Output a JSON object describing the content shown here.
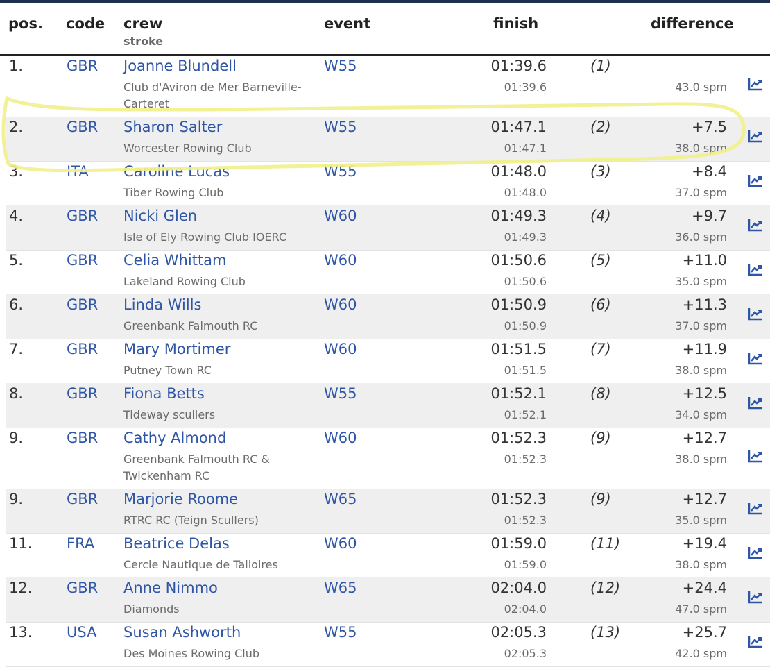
{
  "headers": {
    "pos": "pos.",
    "code": "code",
    "crew": "crew",
    "crew_sub": "stroke",
    "event": "event",
    "finish": "finish",
    "difference": "difference"
  },
  "colors": {
    "link": "#2f56a6",
    "topbar": "#1f2f52",
    "highlight": "#f2f08a"
  },
  "rows": [
    {
      "pos": "1.",
      "code": "GBR",
      "crew": "Joanne Blundell",
      "club": "Club d'Aviron de Mer Barneville-Carteret",
      "event": "W55",
      "finish": "01:39.6",
      "rank": "(1)",
      "diff": "",
      "split": "01:39.6",
      "spm": "43.0 spm",
      "icon": "chart-line-icon"
    },
    {
      "pos": "2.",
      "code": "GBR",
      "crew": "Sharon Salter",
      "club": "Worcester Rowing Club",
      "event": "W55",
      "finish": "01:47.1",
      "rank": "(2)",
      "diff": "+7.5",
      "split": "01:47.1",
      "spm": "38.0 spm",
      "icon": "chart-line-icon"
    },
    {
      "pos": "3.",
      "code": "ITA",
      "crew": "Caroline Lucas",
      "club": "Tiber Rowing Club",
      "event": "W55",
      "finish": "01:48.0",
      "rank": "(3)",
      "diff": "+8.4",
      "split": "01:48.0",
      "spm": "37.0 spm",
      "icon": "chart-line-icon"
    },
    {
      "pos": "4.",
      "code": "GBR",
      "crew": "Nicki Glen",
      "club": "Isle of Ely Rowing Club IOERC",
      "event": "W60",
      "finish": "01:49.3",
      "rank": "(4)",
      "diff": "+9.7",
      "split": "01:49.3",
      "spm": "36.0 spm",
      "icon": "chart-line-icon"
    },
    {
      "pos": "5.",
      "code": "GBR",
      "crew": "Celia Whittam",
      "club": "Lakeland Rowing Club",
      "event": "W60",
      "finish": "01:50.6",
      "rank": "(5)",
      "diff": "+11.0",
      "split": "01:50.6",
      "spm": "35.0 spm",
      "icon": "chart-line-icon"
    },
    {
      "pos": "6.",
      "code": "GBR",
      "crew": "Linda Wills",
      "club": "Greenbank Falmouth RC",
      "event": "W60",
      "finish": "01:50.9",
      "rank": "(6)",
      "diff": "+11.3",
      "split": "01:50.9",
      "spm": "37.0 spm",
      "icon": "chart-line-icon"
    },
    {
      "pos": "7.",
      "code": "GBR",
      "crew": "Mary Mortimer",
      "club": "Putney Town RC",
      "event": "W60",
      "finish": "01:51.5",
      "rank": "(7)",
      "diff": "+11.9",
      "split": "01:51.5",
      "spm": "38.0 spm",
      "icon": "chart-line-icon"
    },
    {
      "pos": "8.",
      "code": "GBR",
      "crew": "Fiona Betts",
      "club": "Tideway scullers",
      "event": "W55",
      "finish": "01:52.1",
      "rank": "(8)",
      "diff": "+12.5",
      "split": "01:52.1",
      "spm": "34.0 spm",
      "icon": "chart-line-icon"
    },
    {
      "pos": "9.",
      "code": "GBR",
      "crew": "Cathy Almond",
      "club": "Greenbank Falmouth RC & Twickenham RC",
      "event": "W60",
      "finish": "01:52.3",
      "rank": "(9)",
      "diff": "+12.7",
      "split": "01:52.3",
      "spm": "38.0 spm",
      "icon": "chart-line-icon"
    },
    {
      "pos": "9.",
      "code": "GBR",
      "crew": "Marjorie Roome",
      "club": "RTRC RC (Teign Scullers)",
      "event": "W65",
      "finish": "01:52.3",
      "rank": "(9)",
      "diff": "+12.7",
      "split": "01:52.3",
      "spm": "35.0 spm",
      "icon": "chart-line-icon"
    },
    {
      "pos": "11.",
      "code": "FRA",
      "crew": "Beatrice Delas",
      "club": "Cercle Nautique de Talloires",
      "event": "W60",
      "finish": "01:59.0",
      "rank": "(11)",
      "diff": "+19.4",
      "split": "01:59.0",
      "spm": "38.0 spm",
      "icon": "chart-line-icon"
    },
    {
      "pos": "12.",
      "code": "GBR",
      "crew": "Anne Nimmo",
      "club": "Diamonds",
      "event": "W65",
      "finish": "02:04.0",
      "rank": "(12)",
      "diff": "+24.4",
      "split": "02:04.0",
      "spm": "47.0 spm",
      "icon": "chart-line-icon"
    },
    {
      "pos": "13.",
      "code": "USA",
      "crew": "Susan Ashworth",
      "club": "Des Moines Rowing Club",
      "event": "W55",
      "finish": "02:05.3",
      "rank": "(13)",
      "diff": "+25.7",
      "split": "02:05.3",
      "spm": "42.0 spm",
      "icon": "chart-line-icon"
    }
  ]
}
